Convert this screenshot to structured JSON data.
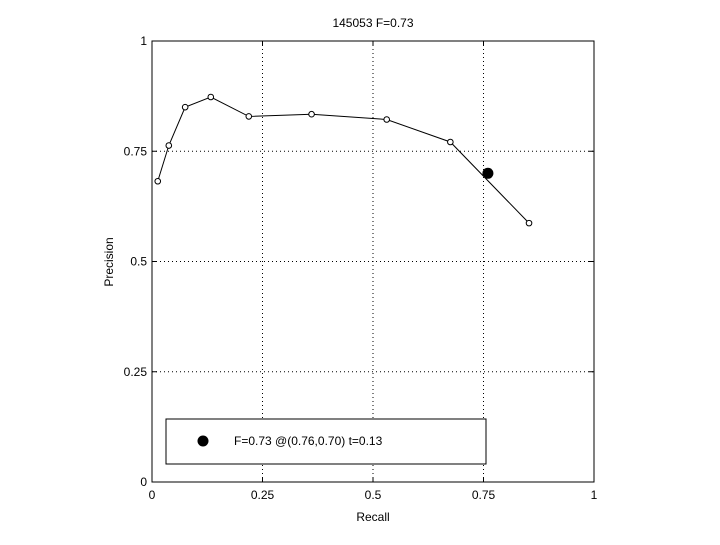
{
  "chart_data": {
    "type": "line",
    "title": "145053 F=0.73",
    "xlabel": "Recall",
    "ylabel": "Precision",
    "xlim": [
      0,
      1
    ],
    "ylim": [
      0,
      1
    ],
    "grid": true,
    "x_ticks": [
      0,
      0.25,
      0.5,
      0.75,
      1
    ],
    "y_ticks": [
      0,
      0.25,
      0.5,
      0.75,
      1
    ],
    "x_tick_labels": [
      "0",
      "0.25",
      "0.5",
      "0.75",
      "1"
    ],
    "y_tick_labels": [
      "0",
      "0.25",
      "0.5",
      "0.75",
      "1"
    ],
    "series": [
      {
        "x": [
          0.013,
          0.038,
          0.075,
          0.133,
          0.219,
          0.361,
          0.531,
          0.675,
          0.853
        ],
        "y": [
          0.682,
          0.763,
          0.85,
          0.873,
          0.829,
          0.834,
          0.822,
          0.771,
          0.587
        ],
        "marker": "open-circle",
        "color": "#000000"
      }
    ],
    "highlight_point": {
      "x": 0.76,
      "y": 0.7,
      "marker": "filled-circle",
      "color": "#000000"
    },
    "legend": {
      "placement": "bottom-left",
      "entries": [
        {
          "label": "F=0.73 @(0.76,0.70) t=0.13",
          "marker": "filled-circle"
        }
      ]
    }
  }
}
